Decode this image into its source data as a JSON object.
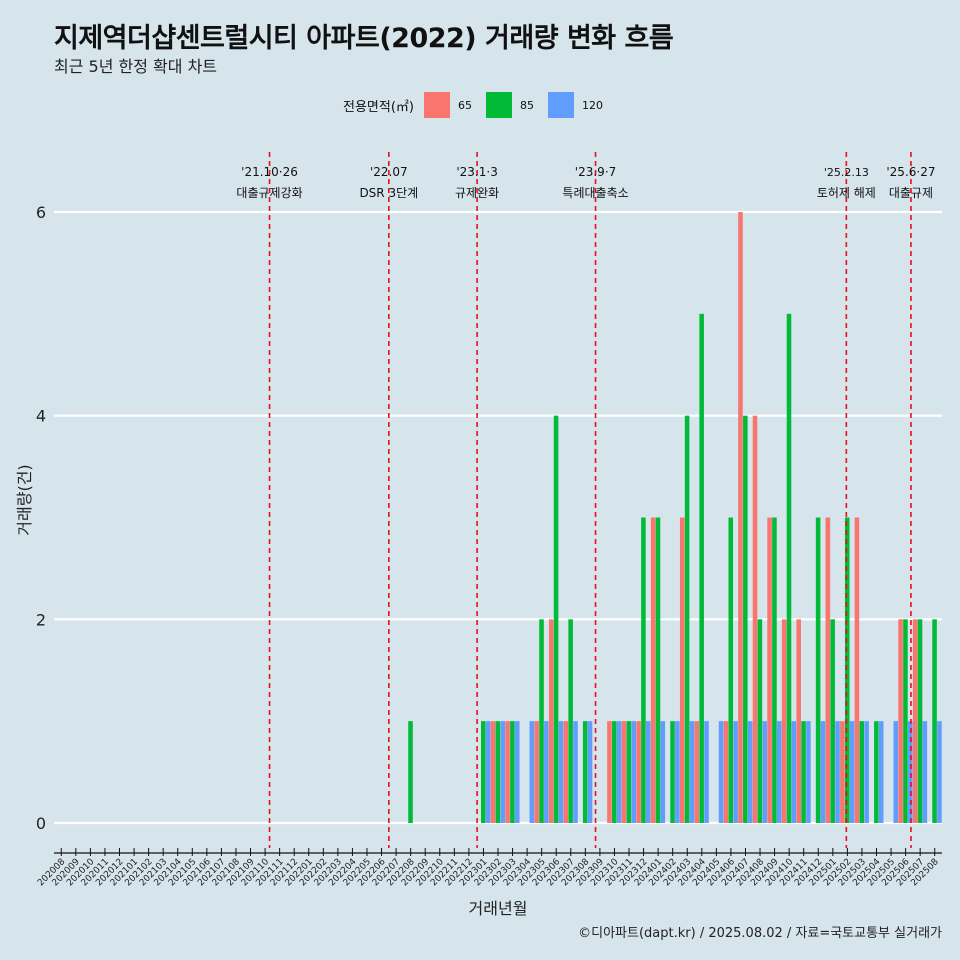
{
  "title": "지제역더샵센트럴시티 아파트(2022) 거래량 변화 흐름",
  "subtitle": "최근 5년 한정 확대 차트",
  "caption": "©디아파트(dapt.kr) / 2025.08.02 / 자료=국토교통부 실거래가",
  "colors": {
    "s65": "#f8766d",
    "s85": "#00ba38",
    "s120": "#619cff",
    "event_line": "#e8101a",
    "grid": "#ffffff",
    "background": "#d6e4ec"
  },
  "chart_data": {
    "type": "bar",
    "xlabel": "거래년월",
    "ylabel": "거래량(건)",
    "ylim": [
      0,
      6
    ],
    "yticks": [
      0,
      2,
      4,
      6
    ],
    "legend": {
      "title": "전용면적(㎡)",
      "placement": "top-center"
    },
    "categories": [
      "202008",
      "202009",
      "202010",
      "202011",
      "202012",
      "202101",
      "202102",
      "202103",
      "202104",
      "202105",
      "202106",
      "202107",
      "202108",
      "202109",
      "202110",
      "202111",
      "202112",
      "202201",
      "202202",
      "202203",
      "202204",
      "202205",
      "202206",
      "202207",
      "202208",
      "202209",
      "202210",
      "202211",
      "202212",
      "202301",
      "202302",
      "202303",
      "202304",
      "202305",
      "202306",
      "202307",
      "202308",
      "202309",
      "202310",
      "202311",
      "202312",
      "202401",
      "202402",
      "202403",
      "202404",
      "202405",
      "202406",
      "202407",
      "202408",
      "202409",
      "202410",
      "202411",
      "202412",
      "202501",
      "202502",
      "202503",
      "202504",
      "202505",
      "202506",
      "202507",
      "202508"
    ],
    "series": [
      {
        "name": "65",
        "values": [
          0,
          0,
          0,
          0,
          0,
          0,
          0,
          0,
          0,
          0,
          0,
          0,
          0,
          0,
          0,
          0,
          0,
          0,
          0,
          0,
          0,
          0,
          0,
          0,
          0,
          0,
          0,
          0,
          0,
          0,
          1,
          1,
          0,
          1,
          2,
          1,
          0,
          0,
          1,
          1,
          1,
          3,
          0,
          3,
          1,
          0,
          1,
          6,
          4,
          3,
          2,
          2,
          0,
          3,
          1,
          3,
          0,
          0,
          2,
          2,
          0
        ]
      },
      {
        "name": "85",
        "values": [
          0,
          0,
          0,
          0,
          0,
          0,
          0,
          0,
          0,
          0,
          0,
          0,
          0,
          0,
          0,
          0,
          0,
          0,
          0,
          0,
          0,
          0,
          0,
          0,
          1,
          0,
          0,
          0,
          0,
          1,
          1,
          1,
          0,
          2,
          4,
          2,
          1,
          0,
          1,
          1,
          3,
          3,
          1,
          4,
          5,
          0,
          3,
          4,
          2,
          3,
          5,
          1,
          3,
          2,
          3,
          1,
          1,
          0,
          2,
          2,
          2
        ]
      },
      {
        "name": "120",
        "values": [
          0,
          0,
          0,
          0,
          0,
          0,
          0,
          0,
          0,
          0,
          0,
          0,
          0,
          0,
          0,
          0,
          0,
          0,
          0,
          0,
          0,
          0,
          0,
          0,
          0,
          0,
          0,
          0,
          0,
          1,
          1,
          1,
          1,
          1,
          1,
          1,
          1,
          0,
          1,
          1,
          1,
          1,
          1,
          1,
          1,
          1,
          1,
          1,
          1,
          1,
          1,
          1,
          1,
          1,
          1,
          1,
          1,
          1,
          1,
          1,
          1
        ]
      }
    ],
    "events": [
      {
        "date": "2021-10-26",
        "label1": "'21.10·26",
        "label2": "대출규제강화"
      },
      {
        "date": "2022-07-01",
        "label1": "'22.07",
        "label2": "DSR 3단계"
      },
      {
        "date": "2023-01-03",
        "label1": "'23.1·3",
        "label2": "규제완화"
      },
      {
        "date": "2023-09-07",
        "label1": "'23.9·7",
        "label2": "특례대출축소"
      },
      {
        "date": "2025-02-13",
        "label1": "'25.2.13",
        "label2": "토허제 해제"
      },
      {
        "date": "2025-06-27",
        "label1": "'25.6·27",
        "label2": "대출규제"
      }
    ]
  }
}
